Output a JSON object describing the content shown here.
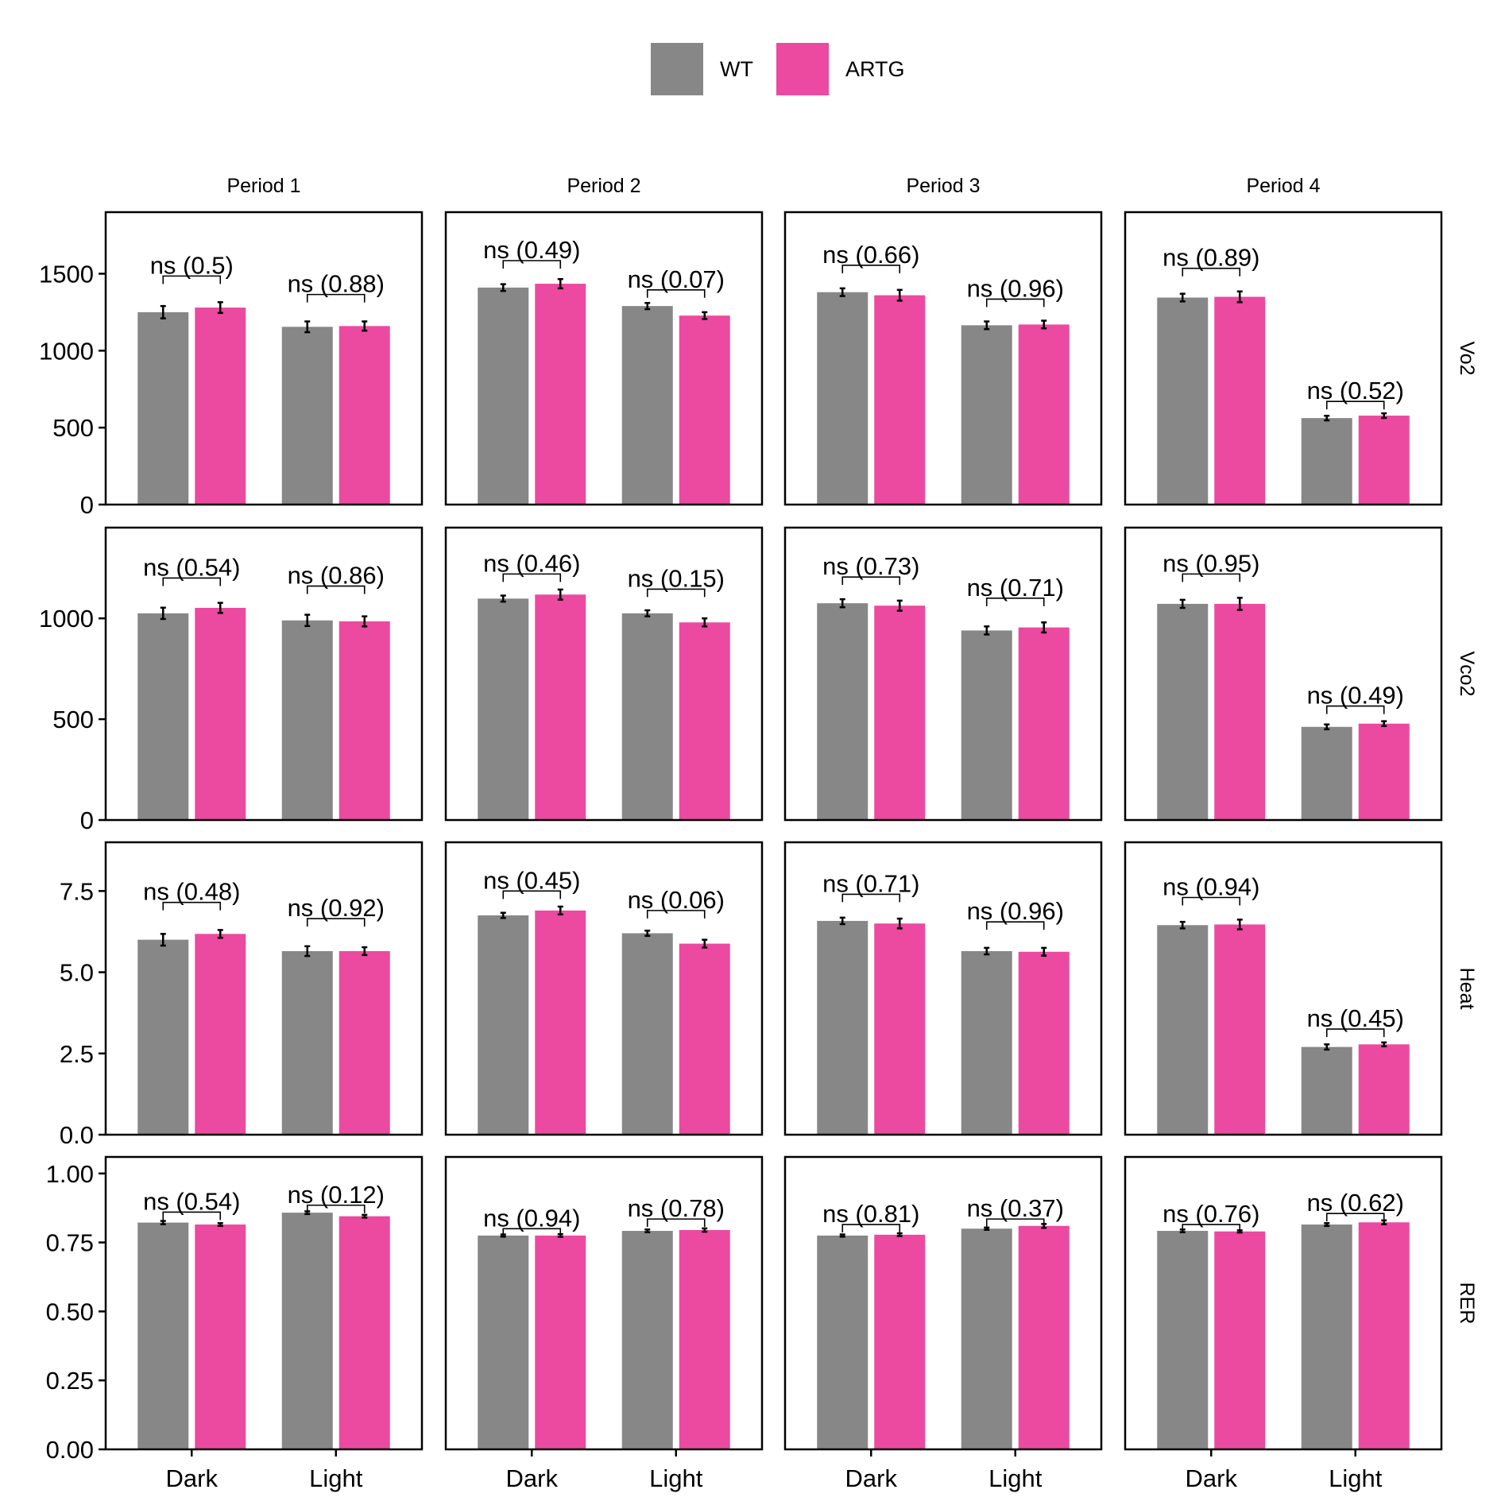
{
  "legend": {
    "position": "top",
    "items": [
      {
        "label": "WT",
        "color": "#878787"
      },
      {
        "label": "ARTG",
        "color": "#EB4AA0"
      }
    ]
  },
  "chart_data": {
    "type": "bar",
    "facet_columns": [
      "Period 1",
      "Period 2",
      "Period 3",
      "Period 4"
    ],
    "facet_rows": [
      "Vo2",
      "Vco2",
      "Heat",
      "RER"
    ],
    "categories": [
      "Dark",
      "Light"
    ],
    "series_names": [
      "WT",
      "ARTG"
    ],
    "grid": false,
    "rows": [
      {
        "label": "Vo2",
        "ylim": [
          0,
          1900
        ],
        "yticks": [
          0,
          500,
          1000,
          1500
        ],
        "ytick_labels": [
          "0",
          "500",
          "1000",
          "1500"
        ],
        "panels": [
          {
            "values": {
              "WT": [
                1250,
                1155
              ],
              "ARTG": [
                1280,
                1160
              ]
            },
            "errors": {
              "WT": [
                40,
                35
              ],
              "ARTG": [
                35,
                30
              ]
            },
            "pvalues": [
              "ns (0.5)",
              "ns (0.88)"
            ],
            "bracket_y": [
              1485,
              1365
            ]
          },
          {
            "values": {
              "WT": [
                1410,
                1290
              ],
              "ARTG": [
                1435,
                1228
              ]
            },
            "errors": {
              "WT": [
                22,
                20
              ],
              "ARTG": [
                30,
                22
              ]
            },
            "pvalues": [
              "ns (0.49)",
              "ns (0.07)"
            ],
            "bracket_y": [
              1585,
              1395
            ]
          },
          {
            "values": {
              "WT": [
                1380,
                1165
              ],
              "ARTG": [
                1360,
                1170
              ]
            },
            "errors": {
              "WT": [
                25,
                25
              ],
              "ARTG": [
                35,
                25
              ]
            },
            "pvalues": [
              "ns (0.66)",
              "ns (0.96)"
            ],
            "bracket_y": [
              1555,
              1335
            ]
          },
          {
            "values": {
              "WT": [
                1345,
                562
              ],
              "ARTG": [
                1350,
                578
              ]
            },
            "errors": {
              "WT": [
                25,
                15
              ],
              "ARTG": [
                35,
                15
              ]
            },
            "pvalues": [
              "ns (0.89)",
              "ns (0.52)"
            ],
            "bracket_y": [
              1535,
              670
            ]
          }
        ]
      },
      {
        "label": "Vco2",
        "ylim": [
          0,
          1450
        ],
        "yticks": [
          0,
          500,
          1000
        ],
        "ytick_labels": [
          "0",
          "500",
          "1000"
        ],
        "panels": [
          {
            "values": {
              "WT": [
                1025,
                990
              ],
              "ARTG": [
                1052,
                985
              ]
            },
            "errors": {
              "WT": [
                28,
                28
              ],
              "ARTG": [
                25,
                25
              ]
            },
            "pvalues": [
              "ns (0.54)",
              "ns (0.86)"
            ],
            "bracket_y": [
              1200,
              1160
            ]
          },
          {
            "values": {
              "WT": [
                1098,
                1025
              ],
              "ARTG": [
                1118,
                980
              ]
            },
            "errors": {
              "WT": [
                15,
                15
              ],
              "ARTG": [
                25,
                20
              ]
            },
            "pvalues": [
              "ns (0.46)",
              "ns (0.15)"
            ],
            "bracket_y": [
              1220,
              1145
            ]
          },
          {
            "values": {
              "WT": [
                1075,
                940
              ],
              "ARTG": [
                1063,
                955
              ]
            },
            "errors": {
              "WT": [
                20,
                20
              ],
              "ARTG": [
                25,
                25
              ]
            },
            "pvalues": [
              "ns (0.73)",
              "ns (0.71)"
            ],
            "bracket_y": [
              1205,
              1100
            ]
          },
          {
            "values": {
              "WT": [
                1072,
                462
              ],
              "ARTG": [
                1072,
                478
              ]
            },
            "errors": {
              "WT": [
                20,
                12
              ],
              "ARTG": [
                30,
                12
              ]
            },
            "pvalues": [
              "ns (0.95)",
              "ns (0.49)"
            ],
            "bracket_y": [
              1220,
              565
            ]
          }
        ]
      },
      {
        "label": "Heat",
        "ylim": [
          0,
          9
        ],
        "yticks": [
          0,
          2.5,
          5,
          7.5
        ],
        "ytick_labels": [
          "0.0",
          "2.5",
          "5.0",
          "7.5"
        ],
        "panels": [
          {
            "values": {
              "WT": [
                6.0,
                5.65
              ],
              "ARTG": [
                6.18,
                5.65
              ]
            },
            "errors": {
              "WT": [
                0.18,
                0.15
              ],
              "ARTG": [
                0.12,
                0.12
              ]
            },
            "pvalues": [
              "ns (0.48)",
              "ns (0.92)"
            ],
            "bracket_y": [
              7.15,
              6.65
            ]
          },
          {
            "values": {
              "WT": [
                6.75,
                6.2
              ],
              "ARTG": [
                6.9,
                5.88
              ]
            },
            "errors": {
              "WT": [
                0.08,
                0.08
              ],
              "ARTG": [
                0.12,
                0.12
              ]
            },
            "pvalues": [
              "ns (0.45)",
              "ns (0.06)"
            ],
            "bracket_y": [
              7.5,
              6.9
            ]
          },
          {
            "values": {
              "WT": [
                6.58,
                5.65
              ],
              "ARTG": [
                6.5,
                5.63
              ]
            },
            "errors": {
              "WT": [
                0.1,
                0.1
              ],
              "ARTG": [
                0.15,
                0.12
              ]
            },
            "pvalues": [
              "ns (0.71)",
              "ns (0.96)"
            ],
            "bracket_y": [
              7.4,
              6.55
            ]
          },
          {
            "values": {
              "WT": [
                6.45,
                2.7
              ],
              "ARTG": [
                6.47,
                2.78
              ]
            },
            "errors": {
              "WT": [
                0.1,
                0.08
              ],
              "ARTG": [
                0.15,
                0.06
              ]
            },
            "pvalues": [
              "ns (0.94)",
              "ns (0.45)"
            ],
            "bracket_y": [
              7.3,
              3.25
            ]
          }
        ]
      },
      {
        "label": "RER",
        "ylim": [
          0,
          1.06
        ],
        "yticks": [
          0,
          0.25,
          0.5,
          0.75,
          1
        ],
        "ytick_labels": [
          "0.00",
          "0.25",
          "0.50",
          "0.75",
          "1.00"
        ],
        "panels": [
          {
            "values": {
              "WT": [
                0.822,
                0.858
              ],
              "ARTG": [
                0.815,
                0.845
              ]
            },
            "errors": {
              "WT": [
                0.006,
                0.005
              ],
              "ARTG": [
                0.005,
                0.005
              ]
            },
            "pvalues": [
              "ns (0.54)",
              "ns (0.12)"
            ],
            "bracket_y": [
              0.86,
              0.885
            ]
          },
          {
            "values": {
              "WT": [
                0.775,
                0.792
              ],
              "ARTG": [
                0.775,
                0.795
              ]
            },
            "errors": {
              "WT": [
                0.004,
                0.005
              ],
              "ARTG": [
                0.005,
                0.006
              ]
            },
            "pvalues": [
              "ns (0.94)",
              "ns (0.78)"
            ],
            "bracket_y": [
              0.8,
              0.835
            ]
          },
          {
            "values": {
              "WT": [
                0.775,
                0.8
              ],
              "ARTG": [
                0.778,
                0.81
              ]
            },
            "errors": {
              "WT": [
                0.004,
                0.004
              ],
              "ARTG": [
                0.005,
                0.007
              ]
            },
            "pvalues": [
              "ns (0.81)",
              "ns (0.37)"
            ],
            "bracket_y": [
              0.815,
              0.835
            ]
          },
          {
            "values": {
              "WT": [
                0.792,
                0.815
              ],
              "ARTG": [
                0.79,
                0.823
              ]
            },
            "errors": {
              "WT": [
                0.005,
                0.005
              ],
              "ARTG": [
                0.004,
                0.007
              ]
            },
            "pvalues": [
              "ns (0.76)",
              "ns (0.62)"
            ],
            "bracket_y": [
              0.815,
              0.855
            ]
          }
        ]
      }
    ]
  }
}
